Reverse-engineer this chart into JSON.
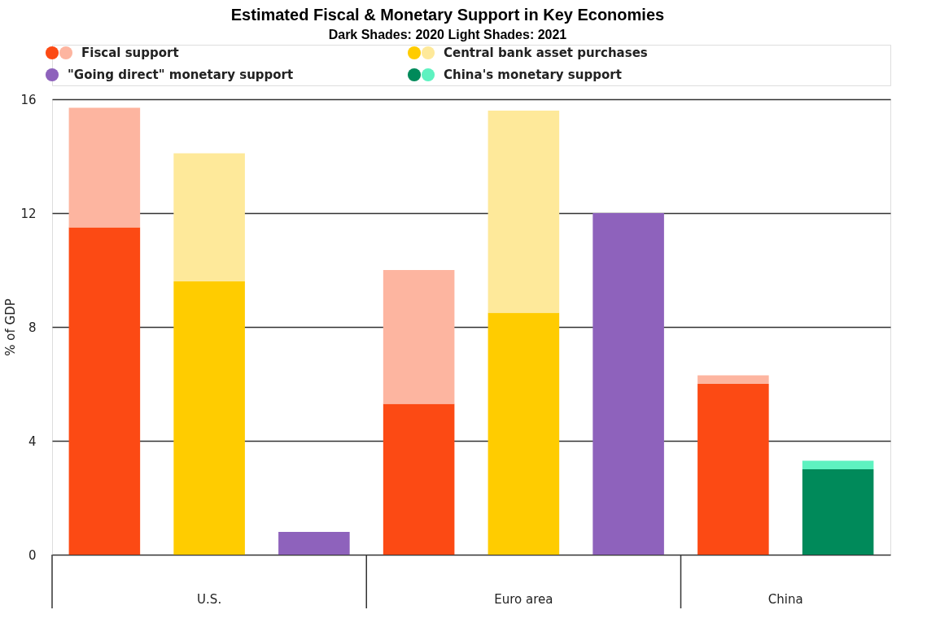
{
  "chart_data": {
    "type": "bar",
    "title": "Estimated Fiscal & Monetary Support in Key Economies",
    "subtitle": "Dark Shades: 2020      Light Shades: 2021",
    "ylabel": "% of GDP",
    "categories": [
      null,
      null,
      null,
      null,
      null,
      null,
      null,
      null
    ],
    "stacked": true,
    "series": [
      {
        "name": "Fiscal support",
        "color": "#fc4a14",
        "values": [
          11.5,
          null,
          null,
          5.3,
          null,
          null,
          6.0,
          null
        ]
      },
      {
        "color": "#fdb5a0",
        "values": [
          4.2,
          null,
          null,
          4.7,
          null,
          null,
          0.3,
          null
        ]
      },
      {
        "name": "Central bank asset purchases",
        "color": "#ffcc00",
        "values": [
          null,
          9.6,
          null,
          null,
          8.5,
          null,
          null,
          null
        ]
      },
      {
        "color": "#fee99a",
        "values": [
          null,
          4.5,
          null,
          null,
          7.1,
          null,
          null,
          null
        ]
      },
      {
        "name": "\"Going direct\" monetary support",
        "color": "#8e62bc",
        "values": [
          null,
          null,
          0.8,
          null,
          null,
          12.0,
          null,
          null
        ]
      },
      {
        "name": "China's monetary support",
        "color": "#008a5a",
        "values": [
          null,
          null,
          null,
          null,
          null,
          null,
          null,
          3.0
        ]
      },
      {
        "color": "#5ef2c0",
        "values": [
          null,
          null,
          null,
          null,
          null,
          null,
          null,
          0.3
        ]
      }
    ],
    "annotations": [
      "U.S.",
      "Euro area",
      "China"
    ],
    "ylim": [
      0,
      16
    ],
    "yticks": [
      0,
      4,
      8,
      12,
      16
    ],
    "grid": "y",
    "legend": "top left"
  }
}
